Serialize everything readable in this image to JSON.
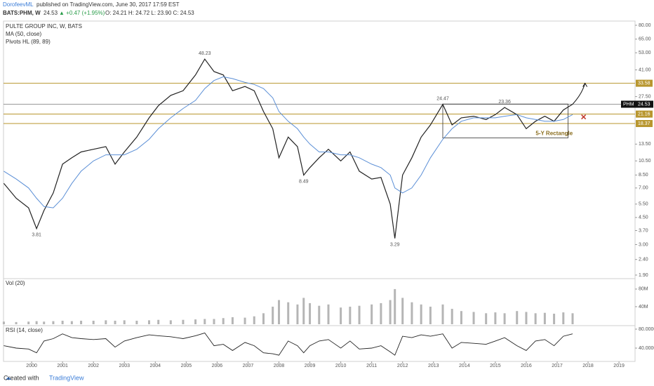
{
  "chart_data": {
    "type": "line",
    "header": {
      "author": "DorofeevML",
      "published": "published on TradingView.com, June 30, 2017 17:59 EST",
      "symbol": "BATS:PHM, W",
      "last": "24.53",
      "change": "▲ +0.47 (+1.95%)",
      "ohlc": "O: 24.21 H: 24.72 L: 23.90 C: 24.53"
    },
    "title": "PULTE GROUP INC, W, BATS",
    "legend": [
      "MA (50, close)",
      "Pivots HL (89, 89)"
    ],
    "log_scale": true,
    "xlim": [
      1999.09,
      2019.52
    ],
    "xticks": [
      2000,
      2001,
      2002,
      2003,
      2004,
      2005,
      2006,
      2007,
      2008,
      2009,
      2010,
      2011,
      2012,
      2013,
      2014,
      2015,
      2016,
      2017,
      2018,
      2019
    ],
    "ylim": [
      1.84,
      85.2
    ],
    "yticks": [
      {
        "value": 1.9,
        "label": "1.90"
      },
      {
        "value": 2.4,
        "label": "2.40"
      },
      {
        "value": 3,
        "label": "3.00"
      },
      {
        "value": 3.7,
        "label": "3.70"
      },
      {
        "value": 4.5,
        "label": "4.50"
      },
      {
        "value": 5.5,
        "label": "5.50"
      },
      {
        "value": 7,
        "label": "7.00"
      },
      {
        "value": 8.5,
        "label": "8.50"
      },
      {
        "value": 10.5,
        "label": "10.50"
      },
      {
        "value": 13.5,
        "label": "13.50"
      },
      {
        "value": 27.5,
        "label": "27.50"
      },
      {
        "value": 41,
        "label": "41.00"
      },
      {
        "value": 53,
        "label": "53.00"
      },
      {
        "value": 65,
        "label": "65.00"
      },
      {
        "value": 80,
        "label": "80.00"
      }
    ],
    "x": [
      1999.1,
      1999.5,
      1999.9,
      2000.16,
      2000.4,
      2000.7,
      2001.0,
      2001.3,
      2001.6,
      2002.0,
      2002.4,
      2002.7,
      2003.0,
      2003.4,
      2003.8,
      2004.1,
      2004.5,
      2004.9,
      2005.3,
      2005.6,
      2005.9,
      2006.2,
      2006.5,
      2006.9,
      2007.2,
      2007.5,
      2007.8,
      2008.0,
      2008.3,
      2008.6,
      2008.8,
      2009.0,
      2009.3,
      2009.6,
      2010.0,
      2010.3,
      2010.6,
      2011.0,
      2011.3,
      2011.6,
      2011.75,
      2012.0,
      2012.3,
      2012.6,
      2012.9,
      2013.3,
      2013.6,
      2013.9,
      2014.3,
      2014.7,
      2015.0,
      2015.3,
      2015.7,
      2016.0,
      2016.3,
      2016.6,
      2016.9,
      2017.2,
      2017.5
    ],
    "series": [
      {
        "name": "PHM",
        "color": "#222222",
        "values": [
          7.5,
          6.0,
          5.2,
          3.81,
          5.0,
          6.5,
          10,
          11,
          12,
          12.5,
          13,
          10,
          12,
          15,
          20,
          24,
          28,
          30,
          38,
          48.23,
          40,
          38,
          30,
          32,
          30,
          22,
          17,
          11,
          15,
          13,
          8.49,
          9.5,
          11,
          12.5,
          10.5,
          12,
          9,
          8,
          8.2,
          5.5,
          3.29,
          8.5,
          11,
          15,
          18,
          24.47,
          18,
          20,
          20.5,
          19.5,
          21,
          23.36,
          21,
          17,
          19,
          20.5,
          19,
          22.5,
          24.53
        ]
      },
      {
        "name": "MA (50, close)",
        "color": "#5b8fd6",
        "values": [
          9,
          8,
          7,
          6,
          5.3,
          5.2,
          6,
          7.5,
          9,
          10.5,
          11.5,
          11.5,
          11.5,
          12.5,
          14.5,
          17,
          20,
          23,
          26,
          31,
          35,
          37,
          36,
          34,
          33,
          31,
          27,
          22,
          19,
          17,
          15,
          13.5,
          12,
          12,
          11.5,
          11.5,
          11,
          10,
          9.5,
          8.5,
          7,
          6.5,
          7,
          8.5,
          11,
          14.5,
          17,
          19,
          20,
          20,
          20,
          20.5,
          21,
          20,
          19.5,
          19,
          19,
          19.5,
          21
        ]
      }
    ],
    "annotations": [
      {
        "x": 2000.16,
        "value": 3.81
      },
      {
        "x": 2005.6,
        "value": 48.23
      },
      {
        "x": 2008.8,
        "value": 8.49
      },
      {
        "x": 2011.75,
        "value": 3.29
      },
      {
        "x": 2013.3,
        "value": 24.47
      },
      {
        "x": 2015.3,
        "value": 23.36
      }
    ],
    "levels": [
      {
        "value": 33.58,
        "color": "#b8962e"
      },
      {
        "value": 21.16,
        "color": "#b8962e"
      },
      {
        "value": 18.37,
        "color": "#b8962e"
      }
    ],
    "current": {
      "label": "PHM",
      "value": 24.53,
      "color": "#111111"
    },
    "rectangle": {
      "label": "5-Y Rectangle",
      "x": [
        2013.3,
        2017.35
      ],
      "y": [
        14.8,
        24.6
      ]
    },
    "arrow_target": {
      "x": 2017.9,
      "value": 33.58
    },
    "volume": {
      "title": "Vol (20)",
      "color": "#b5b5b5",
      "ylim": [
        0,
        99
      ],
      "yticks": [
        {
          "value": 40,
          "label": "40M"
        },
        {
          "value": 80,
          "label": "80M"
        }
      ],
      "values": [
        6,
        5,
        6,
        7,
        6,
        7,
        8,
        7,
        8,
        8,
        9,
        8,
        9,
        8,
        9,
        10,
        9,
        10,
        11,
        12,
        12,
        14,
        16,
        15,
        18,
        25,
        40,
        55,
        50,
        45,
        60,
        48,
        42,
        45,
        38,
        40,
        42,
        45,
        48,
        55,
        80,
        60,
        50,
        45,
        40,
        45,
        35,
        30,
        28,
        25,
        27,
        25,
        30,
        28,
        25,
        26,
        24,
        27,
        25
      ]
    },
    "rsi": {
      "title": "RSI (14, close)",
      "color": "#222222",
      "ylim": [
        16.3,
        84.4
      ],
      "yticks": [
        {
          "value": 40,
          "label": "40.0000"
        },
        {
          "value": 80,
          "label": "80.0000"
        }
      ],
      "values": [
        45,
        40,
        38,
        30,
        55,
        60,
        70,
        62,
        60,
        58,
        60,
        42,
        55,
        62,
        68,
        66,
        64,
        60,
        66,
        72,
        45,
        48,
        35,
        52,
        45,
        30,
        28,
        25,
        55,
        45,
        30,
        45,
        55,
        58,
        40,
        55,
        38,
        40,
        45,
        32,
        25,
        65,
        62,
        68,
        65,
        70,
        40,
        52,
        50,
        48,
        55,
        62,
        45,
        35,
        55,
        58,
        45,
        65,
        70
      ]
    },
    "footer": {
      "created": "Created with",
      "brand": "TradingView"
    }
  }
}
